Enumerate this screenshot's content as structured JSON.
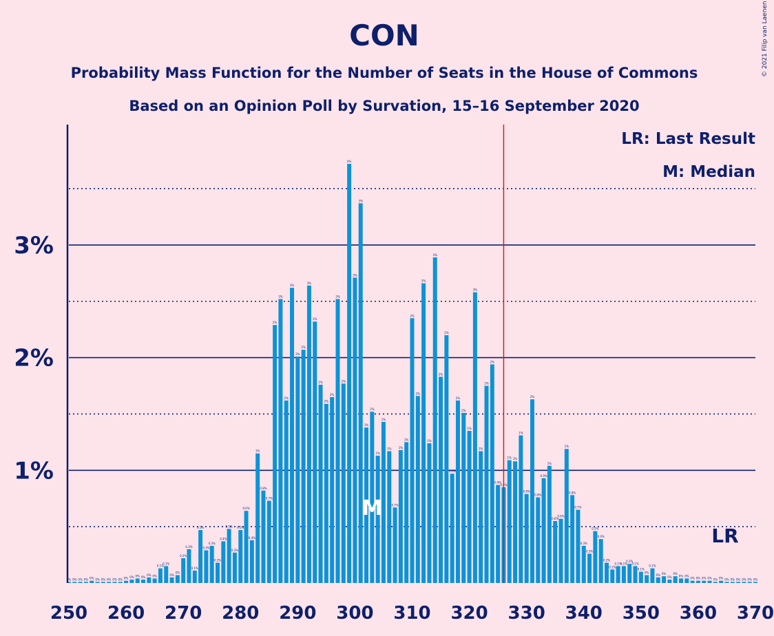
{
  "chart_data": {
    "type": "bar",
    "title": "CON",
    "subtitle": "Probability Mass Function for the Number of Seats in the House of Commons",
    "subtitle2": "Based on an Opinion Poll by Survation, 15–16 September 2020",
    "copyright": "© 2021 Filip van Laenen",
    "legend": {
      "lr": "LR: Last Result",
      "median": "M: Median"
    },
    "lr_label": "LR",
    "median_label": "M",
    "last_result": 326,
    "median": 303,
    "x_start": 250,
    "xlim": [
      250,
      370
    ],
    "ylim": [
      0,
      4.05
    ],
    "xticks": [
      250,
      260,
      270,
      280,
      290,
      300,
      310,
      320,
      330,
      340,
      350,
      360,
      370
    ],
    "yticks": [
      {
        "value": 1,
        "label": "1%"
      },
      {
        "value": 2,
        "label": "2%"
      },
      {
        "value": 3,
        "label": "3%"
      }
    ],
    "dotted_lines": [
      0.5,
      1.5,
      2.5,
      3.5
    ],
    "bar_color": "#0C93D7",
    "axis_color": "#0E1F6B",
    "lr_color": "#D01F25",
    "values": [
      0.01,
      0.01,
      0.01,
      0.01,
      0.02,
      0.01,
      0.01,
      0.01,
      0.01,
      0.01,
      0.02,
      0.03,
      0.04,
      0.03,
      0.05,
      0.04,
      0.13,
      0.15,
      0.05,
      0.07,
      0.22,
      0.3,
      0.11,
      0.47,
      0.29,
      0.33,
      0.18,
      0.37,
      0.48,
      0.27,
      0.47,
      0.64,
      0.38,
      1.15,
      0.82,
      0.73,
      2.29,
      2.52,
      1.62,
      2.62,
      2.01,
      2.07,
      2.64,
      2.32,
      1.76,
      1.59,
      1.65,
      2.52,
      1.77,
      3.72,
      2.71,
      3.37,
      1.38,
      1.52,
      1.13,
      1.43,
      1.17,
      0.67,
      1.18,
      1.25,
      2.35,
      1.66,
      2.66,
      1.24,
      2.89,
      1.83,
      2.2,
      0.97,
      1.62,
      1.51,
      1.35,
      2.58,
      1.17,
      1.75,
      1.94,
      0.87,
      0.85,
      1.09,
      1.08,
      1.31,
      0.79,
      1.63,
      0.76,
      0.93,
      1.04,
      0.55,
      0.57,
      1.19,
      0.78,
      0.65,
      0.33,
      0.26,
      0.46,
      0.39,
      0.18,
      0.12,
      0.15,
      0.15,
      0.17,
      0.15,
      0.1,
      0.07,
      0.13,
      0.05,
      0.06,
      0.03,
      0.06,
      0.04,
      0.04,
      0.02,
      0.02,
      0.02,
      0.02,
      0.01,
      0.02,
      0.01,
      0.01,
      0.01,
      0.01,
      0.01,
      0.01
    ]
  }
}
